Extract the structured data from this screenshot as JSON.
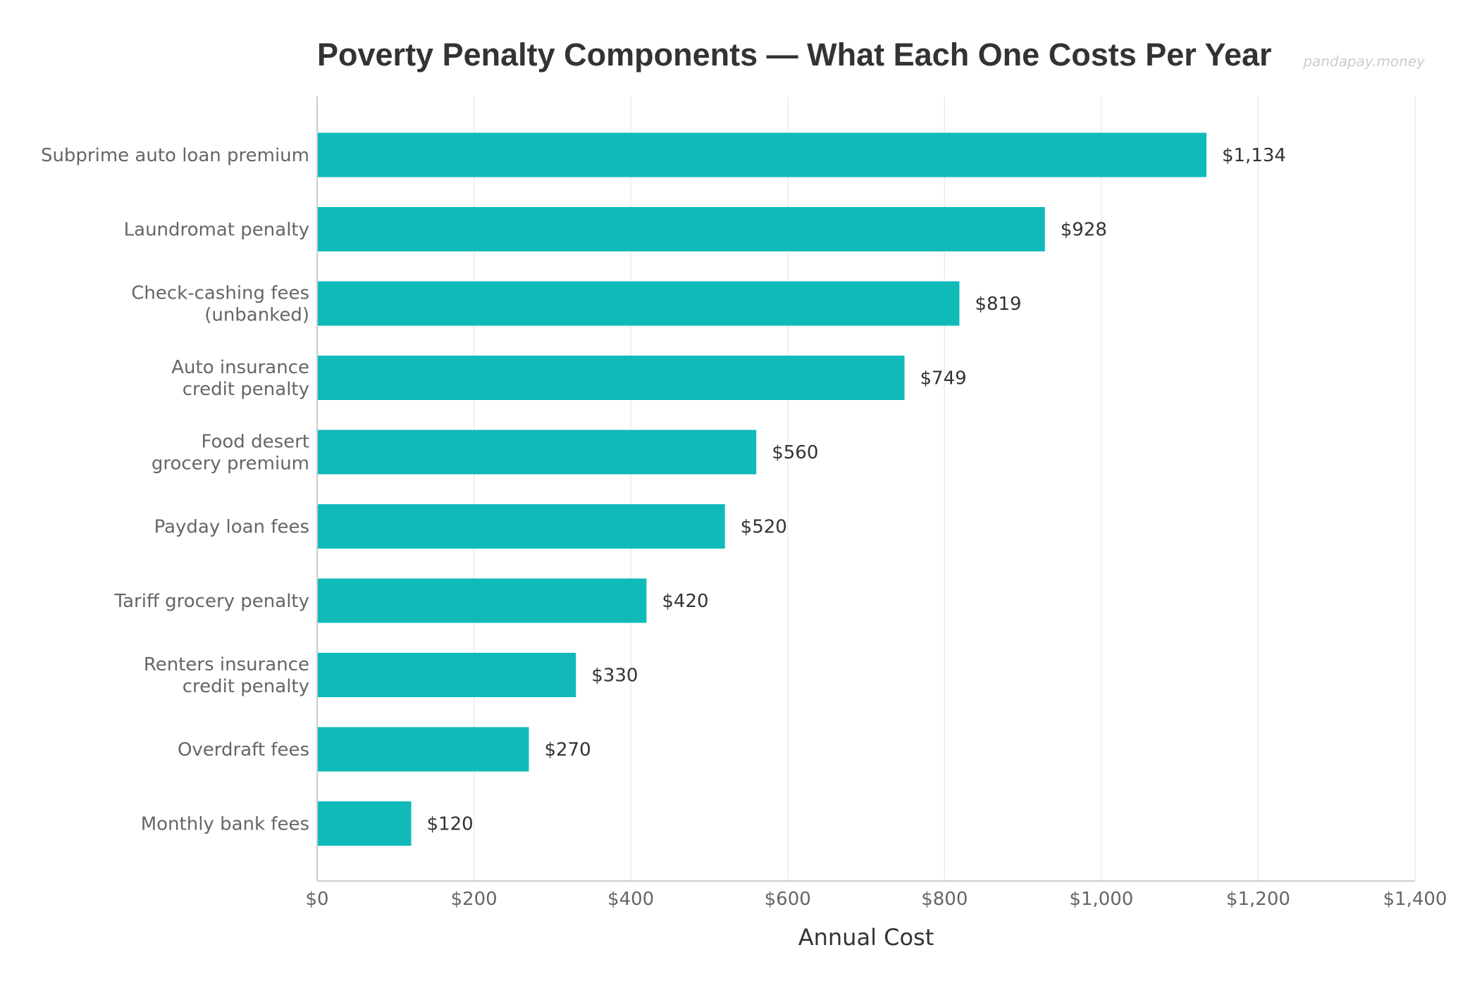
{
  "chart_data": {
    "type": "bar",
    "orientation": "horizontal",
    "title": "Poverty Penalty Components — What Each One Costs Per Year",
    "watermark": "pandapay.money",
    "xlabel": "Annual Cost",
    "ylabel": "",
    "xlim": [
      0,
      1400
    ],
    "grid": "vertical",
    "bar_color": "#0fbab9",
    "categories": [
      [
        "Subprime auto loan premium"
      ],
      [
        "Laundromat penalty"
      ],
      [
        "Check-cashing fees",
        "(unbanked)"
      ],
      [
        "Auto insurance",
        "credit penalty"
      ],
      [
        "Food desert",
        "grocery premium"
      ],
      [
        "Payday loan fees"
      ],
      [
        "Tariff grocery penalty"
      ],
      [
        "Renters insurance",
        "credit penalty"
      ],
      [
        "Overdraft fees"
      ],
      [
        "Monthly bank fees"
      ]
    ],
    "values": [
      1134,
      928,
      819,
      749,
      560,
      520,
      420,
      330,
      270,
      120
    ],
    "value_labels": [
      "$1,134",
      "$928",
      "$819",
      "$749",
      "$560",
      "$520",
      "$420",
      "$330",
      "$270",
      "$120"
    ],
    "x_ticks": [
      0,
      200,
      400,
      600,
      800,
      1000,
      1200,
      1400
    ],
    "x_tick_labels": [
      "$0",
      "$200",
      "$400",
      "$600",
      "$800",
      "$1,000",
      "$1,200",
      "$1,400"
    ]
  }
}
